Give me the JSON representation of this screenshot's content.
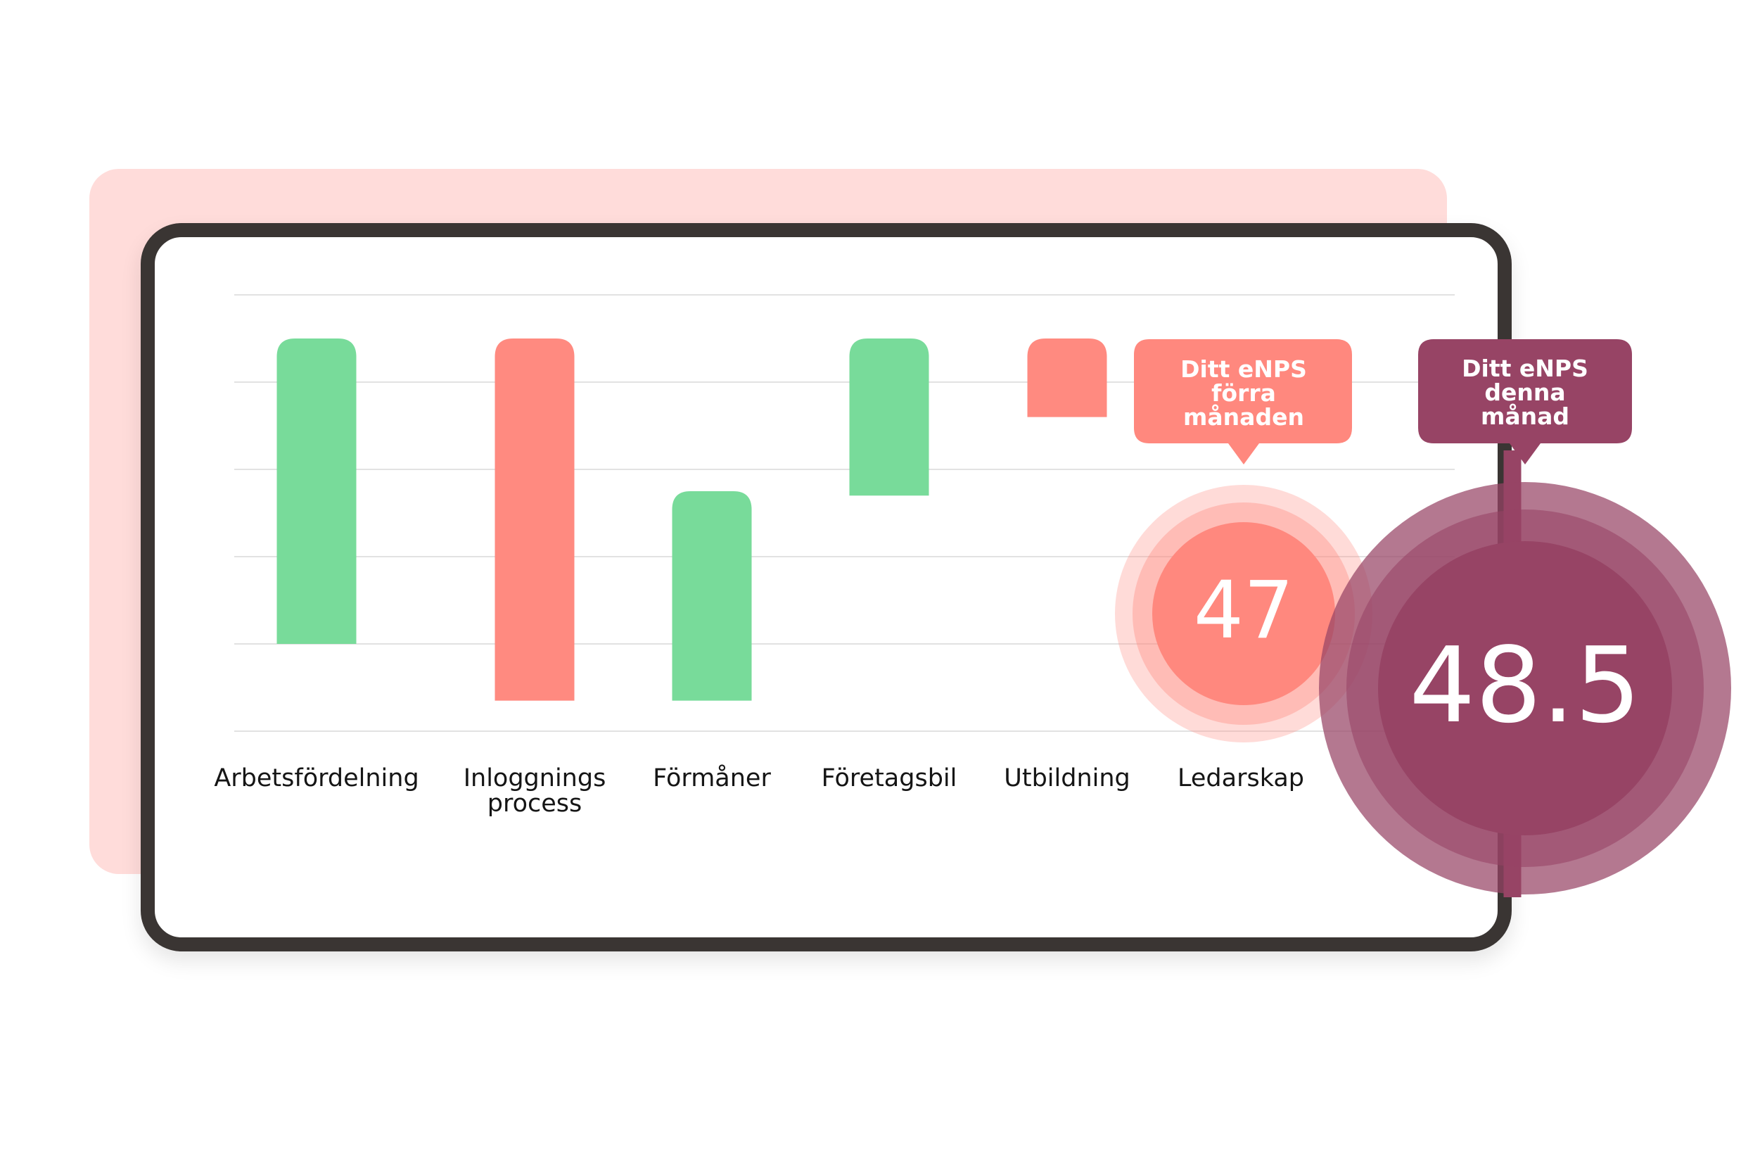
{
  "chart_data": {
    "type": "bar",
    "categories": [
      "Arbetsfördelning",
      "Inloggnings process",
      "Förmåner",
      "Företagsbil",
      "Utbildning",
      "Ledarskap"
    ],
    "category_lines": [
      [
        "Arbetsfördelning"
      ],
      [
        "Inloggnings",
        "process"
      ],
      [
        "Förmåner"
      ],
      [
        "Företagsbil"
      ],
      [
        "Utbildning"
      ],
      [
        "Ledarskap"
      ]
    ],
    "ranges": [
      [
        1.0,
        4.5
      ],
      [
        0.35,
        4.5
      ],
      [
        0.35,
        2.75
      ],
      [
        2.7,
        4.5
      ],
      [
        3.6,
        4.5
      ],
      null
    ],
    "directions": [
      "positive",
      "negative",
      "positive",
      "positive",
      "negative",
      null
    ],
    "ylim": [
      0,
      5
    ],
    "grid": true,
    "colors": {
      "positive": "#78db9a",
      "negative": "#ff8a80",
      "grid": "#e2e2e2"
    },
    "title": "",
    "xlabel": "",
    "ylabel": ""
  },
  "previous": {
    "label_lines": [
      "Ditt eNPS",
      "förra",
      "månaden"
    ],
    "value": "47",
    "color": "#ff887e"
  },
  "current": {
    "label_lines": [
      "Ditt eNPS",
      "denna",
      "månad"
    ],
    "value": "48.5",
    "color": "#974465"
  }
}
